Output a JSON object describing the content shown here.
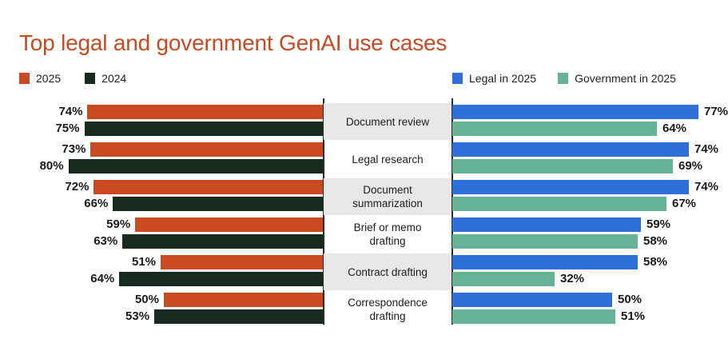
{
  "title": "Top legal and government GenAI use cases",
  "legend_left": [
    {
      "label": "2025",
      "color": "#c94a21"
    },
    {
      "label": "2024",
      "color": "#18291f"
    }
  ],
  "legend_right": [
    {
      "label": "Legal in 2025",
      "color": "#2f6fd8"
    },
    {
      "label": "Government in 2025",
      "color": "#66b297"
    }
  ],
  "categories": [
    {
      "label": "Document review",
      "y2025": "74%",
      "y2024": "75%",
      "legal": "77%",
      "gov": "64%"
    },
    {
      "label": "Legal research",
      "y2025": "73%",
      "y2024": "80%",
      "legal": "74%",
      "gov": "69%"
    },
    {
      "label": "Document summarization",
      "y2025": "72%",
      "y2024": "66%",
      "legal": "74%",
      "gov": "67%"
    },
    {
      "label": "Brief or memo drafting",
      "y2025": "59%",
      "y2024": "63%",
      "legal": "59%",
      "gov": "58%"
    },
    {
      "label": "Contract drafting",
      "y2025": "51%",
      "y2024": "64%",
      "legal": "58%",
      "gov": "32%"
    },
    {
      "label": "Correspondence drafting",
      "y2025": "50%",
      "y2024": "53%",
      "legal": "50%",
      "gov": "51%"
    }
  ],
  "chart_data": [
    {
      "type": "bar",
      "orientation": "horizontal",
      "direction": "leftward",
      "title": "Top legal and government GenAI use cases",
      "categories": [
        "Document review",
        "Legal research",
        "Document summarization",
        "Brief or memo drafting",
        "Contract drafting",
        "Correspondence drafting"
      ],
      "series": [
        {
          "name": "2025",
          "color": "#c94a21",
          "values": [
            74,
            73,
            72,
            59,
            51,
            50
          ]
        },
        {
          "name": "2024",
          "color": "#18291f",
          "values": [
            75,
            80,
            66,
            63,
            64,
            53
          ]
        }
      ],
      "value_format": "percent",
      "xlabel": "",
      "ylabel": "",
      "xlim": [
        0,
        80
      ],
      "grid": false,
      "legend_position": "top-left"
    },
    {
      "type": "bar",
      "orientation": "horizontal",
      "direction": "rightward",
      "title": "Top legal and government GenAI use cases",
      "categories": [
        "Document review",
        "Legal research",
        "Document summarization",
        "Brief or memo drafting",
        "Contract drafting",
        "Correspondence drafting"
      ],
      "series": [
        {
          "name": "Legal in 2025",
          "color": "#2f6fd8",
          "values": [
            77,
            74,
            74,
            59,
            58,
            50
          ]
        },
        {
          "name": "Government in 2025",
          "color": "#66b297",
          "values": [
            64,
            69,
            67,
            58,
            32,
            51
          ]
        }
      ],
      "value_format": "percent",
      "xlabel": "",
      "ylabel": "",
      "xlim": [
        0,
        80
      ],
      "grid": false,
      "legend_position": "top-right"
    }
  ]
}
